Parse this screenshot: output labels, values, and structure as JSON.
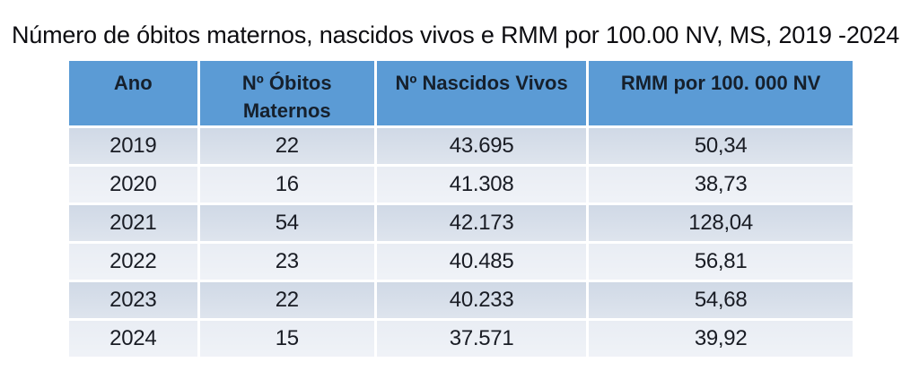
{
  "title": "Número de óbitos maternos, nascidos vivos e RMM por 100.00 NV, MS, 2019 -2024",
  "colors": {
    "header_bg": "#5b9bd5",
    "row_dark_bg": "#d0d9e6",
    "row_light_bg": "#e9edf4",
    "header_text": "#16202c",
    "cell_text": "#191c24",
    "title_text": "#0d0d11"
  },
  "table": {
    "columns": [
      "Ano",
      "Nº Óbitos Maternos",
      "Nº Nascidos Vivos",
      "RMM por 100. 000 NV"
    ],
    "rows": [
      [
        "2019",
        "22",
        "43.695",
        "50,34"
      ],
      [
        "2020",
        "16",
        "41.308",
        "38,73"
      ],
      [
        "2021",
        "54",
        "42.173",
        "128,04"
      ],
      [
        "2022",
        "23",
        "40.485",
        "56,81"
      ],
      [
        "2023",
        "22",
        "40.233",
        "54,68"
      ],
      [
        "2024",
        "15",
        "37.571",
        "39,92"
      ]
    ]
  }
}
